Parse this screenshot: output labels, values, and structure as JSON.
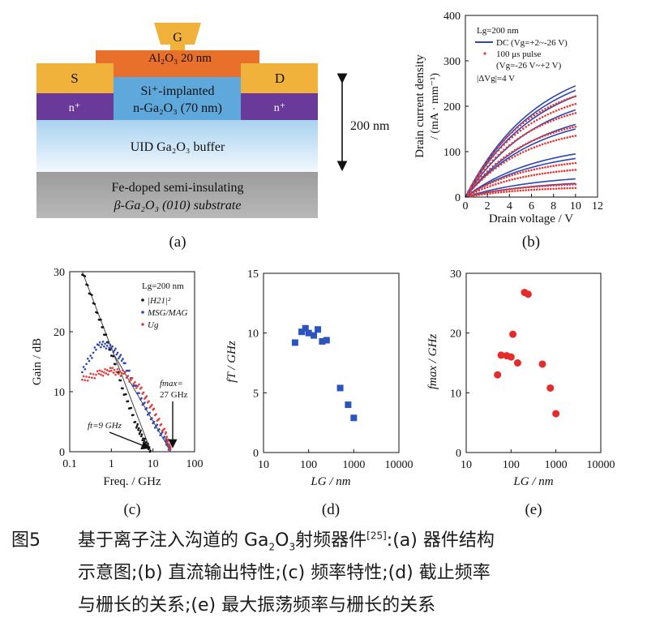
{
  "colors": {
    "gold": "#F0B23A",
    "orange": "#E8702A",
    "blue_layer": "#5FA8DB",
    "purple": "#6A3A9A",
    "light_blue": "#CFE6F7",
    "gray": "#A8A8A8",
    "dc_blue": "#2E47B0",
    "pulse_red": "#E23A3A",
    "fmax_red": "#E62B2B",
    "ft_blue": "#2A55C0"
  },
  "panel_a": {
    "gate_label": "G",
    "source_label": "S",
    "drain_label": "D",
    "dielectric": "Al₂O₃ 20 nm",
    "implant_line1": "Si⁺-implanted",
    "implant_line2": "n-Ga₂O₃ (70 nm)",
    "n_plus": "n⁺",
    "buffer": "UID Ga₂O₃ buffer",
    "substrate_line1": "Fe-doped semi-insulating",
    "substrate_line2": "β-Ga₂O₃ (010) substrate",
    "depth": "200 nm",
    "label": "(a)"
  },
  "chart_data": [
    {
      "type": "line",
      "panel": "(b)",
      "xlabel": "Drain voltage / V",
      "ylabel_line1": "Drain current density",
      "ylabel_line2": "/ (mA · mm⁻¹)",
      "xlim": [
        0,
        12
      ],
      "ylim": [
        0,
        400
      ],
      "xticks": [
        "0",
        "2",
        "4",
        "6",
        "8",
        "10",
        "12"
      ],
      "yticks": [
        "0",
        "100",
        "200",
        "300",
        "400"
      ],
      "legend": [
        "Lg=200 nm",
        "DC (Vg=+2~-26 V)",
        "100 μs pulse",
        "(Vg=-26 V~+2 V)",
        "|ΔVg|=4 V"
      ],
      "dc_curve_end_values": [
        245,
        235,
        222,
        192,
        160,
        150,
        95,
        85,
        40,
        30
      ],
      "pulse_curve_end_values": [
        222,
        205,
        185,
        155,
        135,
        75,
        60,
        28,
        20
      ]
    },
    {
      "type": "line",
      "panel": "(c)",
      "xlabel": "Freq. / GHz",
      "ylabel": "Gain / dB",
      "xscale": "log",
      "xlim": [
        0.1,
        100
      ],
      "ylim": [
        0,
        30
      ],
      "xticks": [
        "0.1",
        "1",
        "10",
        "100"
      ],
      "yticks": [
        "0",
        "10",
        "20",
        "30"
      ],
      "legend_title": "Lg=200 nm",
      "series": [
        {
          "name": "|H21|²",
          "x": [
            0.2,
            0.5,
            1,
            2,
            4,
            6,
            9
          ],
          "values": [
            30,
            22.5,
            16.5,
            10,
            4.5,
            2,
            0
          ]
        },
        {
          "name": "MSG/MAG",
          "x": [
            0.2,
            0.5,
            1,
            2,
            5,
            10,
            20,
            27
          ],
          "values": [
            13.5,
            18,
            17.5,
            15,
            9,
            5,
            2,
            0
          ]
        },
        {
          "name": "Ug",
          "x": [
            0.2,
            0.5,
            1,
            2,
            5,
            10,
            20,
            27
          ],
          "values": [
            12,
            13,
            13.5,
            13,
            10.5,
            7,
            3,
            0
          ]
        }
      ],
      "annotations": [
        "fmax=",
        "27 GHz",
        "ft=9 GHz"
      ]
    },
    {
      "type": "scatter",
      "panel": "(d)",
      "xlabel": "LG / nm",
      "ylabel": "fT / GHz",
      "xscale": "log",
      "xlim": [
        10,
        10000
      ],
      "ylim": [
        0,
        15
      ],
      "xticks": [
        "10",
        "100",
        "1000",
        "10000"
      ],
      "yticks": [
        "0",
        "5",
        "10",
        "15"
      ],
      "series": [
        {
          "name": "fT",
          "x": [
            50,
            70,
            85,
            100,
            130,
            160,
            200,
            250,
            500,
            750,
            1000
          ],
          "values": [
            9.2,
            10.1,
            10.4,
            10.0,
            9.8,
            10.3,
            9.3,
            9.4,
            5.4,
            4.0,
            2.9
          ]
        }
      ]
    },
    {
      "type": "scatter",
      "panel": "(e)",
      "xlabel": "LG / nm",
      "ylabel": "fmax / GHz",
      "xscale": "log",
      "xlim": [
        10,
        10000
      ],
      "ylim": [
        0,
        30
      ],
      "xticks": [
        "10",
        "100",
        "1000",
        "10000"
      ],
      "yticks": [
        "0",
        "10",
        "20",
        "30"
      ],
      "series": [
        {
          "name": "fmax",
          "x": [
            50,
            60,
            80,
            100,
            110,
            140,
            200,
            240,
            500,
            750,
            1000
          ],
          "values": [
            13.0,
            16.3,
            16.2,
            16.0,
            19.8,
            15.0,
            26.8,
            26.5,
            14.8,
            10.8,
            6.5
          ]
        }
      ]
    }
  ],
  "caption": {
    "fig_num": "图5",
    "line1_pre": "基于离子注入沟道的 Ga",
    "sub2": "2",
    "o": "O",
    "sub3": "3",
    "line1_post": "射频器件",
    "ref": "[25]",
    "line1_tail": ":(a) 器件结构",
    "line2": "示意图;(b) 直流输出特性;(c) 频率特性;(d) 截止频率",
    "line3": "与栅长的关系;(e) 最大振荡频率与栅长的关系"
  }
}
